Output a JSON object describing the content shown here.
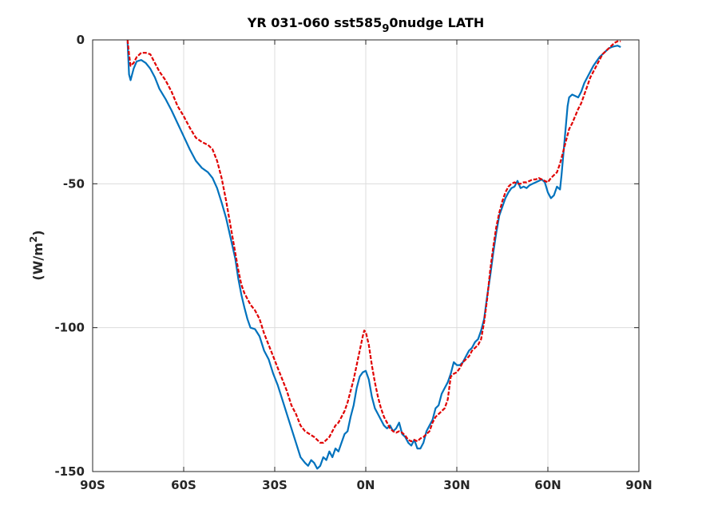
{
  "chart_data": {
    "type": "line",
    "title": {
      "main": "YR 031-060 sst585",
      "subscript": "9",
      "rest": "0nudge LATH"
    },
    "ylabel": {
      "main": "(W/m",
      "superscript": "2",
      "rest": ")"
    },
    "xlabel": "",
    "xlim": [
      -90,
      90
    ],
    "ylim": [
      -150,
      0
    ],
    "xticks": [
      {
        "value": -90,
        "label": "90S"
      },
      {
        "value": -60,
        "label": "60S"
      },
      {
        "value": -30,
        "label": "30S"
      },
      {
        "value": 0,
        "label": "0N"
      },
      {
        "value": 30,
        "label": "30N"
      },
      {
        "value": 60,
        "label": "60N"
      },
      {
        "value": 90,
        "label": "90N"
      }
    ],
    "yticks": [
      {
        "value": 0,
        "label": "0"
      },
      {
        "value": -50,
        "label": "-50"
      },
      {
        "value": -100,
        "label": "-100"
      },
      {
        "value": -150,
        "label": "-150"
      }
    ],
    "grid": true,
    "series": [
      {
        "color": "#0072BD",
        "style": "solid",
        "points": [
          [
            -78.5,
            -0.5
          ],
          [
            -78,
            -12
          ],
          [
            -77.5,
            -14
          ],
          [
            -76.5,
            -10
          ],
          [
            -75.5,
            -7.5
          ],
          [
            -74,
            -7
          ],
          [
            -72.5,
            -8
          ],
          [
            -71,
            -10
          ],
          [
            -69.5,
            -13
          ],
          [
            -68,
            -17
          ],
          [
            -66,
            -20.5
          ],
          [
            -64,
            -24.5
          ],
          [
            -62,
            -29
          ],
          [
            -60,
            -33.5
          ],
          [
            -58,
            -38
          ],
          [
            -56,
            -42
          ],
          [
            -54,
            -44.5
          ],
          [
            -52,
            -46
          ],
          [
            -50.5,
            -48
          ],
          [
            -49,
            -51.5
          ],
          [
            -47.5,
            -56.5
          ],
          [
            -46,
            -62
          ],
          [
            -44.5,
            -69
          ],
          [
            -43,
            -76
          ],
          [
            -42,
            -83
          ],
          [
            -41,
            -88.5
          ],
          [
            -40,
            -93
          ],
          [
            -39,
            -97
          ],
          [
            -38,
            -100
          ],
          [
            -36.5,
            -100.5
          ],
          [
            -35,
            -103
          ],
          [
            -33.5,
            -108
          ],
          [
            -32,
            -111
          ],
          [
            -30.5,
            -116
          ],
          [
            -29,
            -120
          ],
          [
            -27.5,
            -125
          ],
          [
            -26,
            -130
          ],
          [
            -24.5,
            -135
          ],
          [
            -23,
            -140
          ],
          [
            -21.5,
            -145
          ],
          [
            -20,
            -147
          ],
          [
            -19,
            -148
          ],
          [
            -18,
            -146
          ],
          [
            -17,
            -147
          ],
          [
            -16,
            -149
          ],
          [
            -15,
            -148
          ],
          [
            -14,
            -145
          ],
          [
            -13,
            -146
          ],
          [
            -12,
            -143
          ],
          [
            -11,
            -145
          ],
          [
            -10,
            -142
          ],
          [
            -9,
            -143
          ],
          [
            -8,
            -140
          ],
          [
            -7,
            -137
          ],
          [
            -6,
            -136
          ],
          [
            -5,
            -131
          ],
          [
            -4,
            -127
          ],
          [
            -3,
            -121
          ],
          [
            -2,
            -117
          ],
          [
            -1,
            -115.5
          ],
          [
            0,
            -115
          ],
          [
            1,
            -118
          ],
          [
            2,
            -124
          ],
          [
            3,
            -128
          ],
          [
            4,
            -130
          ],
          [
            5,
            -132
          ],
          [
            6,
            -134
          ],
          [
            7,
            -135
          ],
          [
            8,
            -134
          ],
          [
            9,
            -136
          ],
          [
            10,
            -135
          ],
          [
            11,
            -133
          ],
          [
            12,
            -137
          ],
          [
            13,
            -138
          ],
          [
            14,
            -140
          ],
          [
            15,
            -141
          ],
          [
            16,
            -139
          ],
          [
            17,
            -142
          ],
          [
            18,
            -142
          ],
          [
            19,
            -140
          ],
          [
            20,
            -136
          ],
          [
            21,
            -134
          ],
          [
            22,
            -132
          ],
          [
            23,
            -128
          ],
          [
            24,
            -127
          ],
          [
            25,
            -123
          ],
          [
            26,
            -121
          ],
          [
            27,
            -119
          ],
          [
            28,
            -116
          ],
          [
            29,
            -112
          ],
          [
            30,
            -113
          ],
          [
            31,
            -113
          ],
          [
            32,
            -112
          ],
          [
            33,
            -110
          ],
          [
            34,
            -108
          ],
          [
            35,
            -107
          ],
          [
            36,
            -105
          ],
          [
            37,
            -104
          ],
          [
            38,
            -101
          ],
          [
            39,
            -97
          ],
          [
            40,
            -89
          ],
          [
            41,
            -82
          ],
          [
            42,
            -74
          ],
          [
            43,
            -67
          ],
          [
            44,
            -61
          ],
          [
            45,
            -58
          ],
          [
            46,
            -55
          ],
          [
            47,
            -53
          ],
          [
            48,
            -51.5
          ],
          [
            49,
            -51
          ],
          [
            50,
            -49
          ],
          [
            51,
            -51.5
          ],
          [
            52,
            -51
          ],
          [
            53,
            -51.5
          ],
          [
            54,
            -50.5
          ],
          [
            55,
            -50
          ],
          [
            56,
            -49.5
          ],
          [
            57,
            -49
          ],
          [
            58,
            -48.5
          ],
          [
            59,
            -49.5
          ],
          [
            60,
            -53
          ],
          [
            61,
            -55
          ],
          [
            62,
            -54
          ],
          [
            63,
            -51
          ],
          [
            64,
            -52
          ],
          [
            64.5,
            -47
          ],
          [
            65,
            -41
          ],
          [
            65.5,
            -35
          ],
          [
            66,
            -29
          ],
          [
            66.5,
            -23
          ],
          [
            67,
            -20
          ],
          [
            68,
            -19
          ],
          [
            69,
            -19.5
          ],
          [
            70,
            -20
          ],
          [
            71,
            -18
          ],
          [
            72,
            -15
          ],
          [
            73,
            -13
          ],
          [
            74,
            -11
          ],
          [
            75,
            -9
          ],
          [
            76,
            -7.5
          ],
          [
            77,
            -6
          ],
          [
            78,
            -5
          ],
          [
            79,
            -4
          ],
          [
            80,
            -3
          ],
          [
            81,
            -2.5
          ],
          [
            82,
            -2.2
          ],
          [
            83,
            -2
          ],
          [
            84,
            -2.5
          ]
        ]
      },
      {
        "color": "#E00000",
        "style": "dashed",
        "points": [
          [
            -78.5,
            0
          ],
          [
            -78,
            -5
          ],
          [
            -77.5,
            -9
          ],
          [
            -76.5,
            -8
          ],
          [
            -75.5,
            -6
          ],
          [
            -74,
            -4.5
          ],
          [
            -72.5,
            -4.5
          ],
          [
            -71,
            -5
          ],
          [
            -69.5,
            -8
          ],
          [
            -68,
            -11
          ],
          [
            -66,
            -14
          ],
          [
            -64,
            -18
          ],
          [
            -62,
            -23
          ],
          [
            -60,
            -26.5
          ],
          [
            -58,
            -30.5
          ],
          [
            -56,
            -34
          ],
          [
            -54,
            -35.5
          ],
          [
            -52,
            -36.5
          ],
          [
            -50.5,
            -38
          ],
          [
            -49,
            -42
          ],
          [
            -47.5,
            -48
          ],
          [
            -46,
            -56
          ],
          [
            -44.5,
            -65
          ],
          [
            -43,
            -74
          ],
          [
            -42,
            -80
          ],
          [
            -41,
            -85
          ],
          [
            -40,
            -88
          ],
          [
            -39,
            -90
          ],
          [
            -38,
            -92
          ],
          [
            -36.5,
            -94
          ],
          [
            -35,
            -97
          ],
          [
            -33.5,
            -102
          ],
          [
            -32,
            -106
          ],
          [
            -30.5,
            -110
          ],
          [
            -29,
            -114
          ],
          [
            -27.5,
            -118
          ],
          [
            -26,
            -122
          ],
          [
            -24.5,
            -127
          ],
          [
            -23,
            -130
          ],
          [
            -21.5,
            -134
          ],
          [
            -20,
            -136
          ],
          [
            -18.5,
            -137
          ],
          [
            -17,
            -138
          ],
          [
            -16,
            -139
          ],
          [
            -15,
            -140
          ],
          [
            -14,
            -140
          ],
          [
            -13,
            -139
          ],
          [
            -12,
            -138
          ],
          [
            -11,
            -136
          ],
          [
            -10,
            -134
          ],
          [
            -9,
            -133
          ],
          [
            -8,
            -131
          ],
          [
            -7,
            -129
          ],
          [
            -6,
            -126
          ],
          [
            -5,
            -122
          ],
          [
            -4,
            -118
          ],
          [
            -3,
            -113
          ],
          [
            -2,
            -108
          ],
          [
            -1,
            -103
          ],
          [
            -0.5,
            -101
          ],
          [
            0,
            -101.5
          ],
          [
            1,
            -106
          ],
          [
            2,
            -113
          ],
          [
            3,
            -119
          ],
          [
            4,
            -124
          ],
          [
            5,
            -128
          ],
          [
            6,
            -131
          ],
          [
            7,
            -133
          ],
          [
            8,
            -135
          ],
          [
            9,
            -136
          ],
          [
            10,
            -136.5
          ],
          [
            11,
            -136
          ],
          [
            12,
            -136.5
          ],
          [
            13,
            -137.5
          ],
          [
            14,
            -139
          ],
          [
            15,
            -139.5
          ],
          [
            16,
            -139
          ],
          [
            17,
            -139.5
          ],
          [
            18,
            -138.5
          ],
          [
            19,
            -138
          ],
          [
            20,
            -137
          ],
          [
            21,
            -136
          ],
          [
            22,
            -133
          ],
          [
            23,
            -131
          ],
          [
            24,
            -130
          ],
          [
            25,
            -129
          ],
          [
            26,
            -128
          ],
          [
            27,
            -125
          ],
          [
            28,
            -117
          ],
          [
            29,
            -116
          ],
          [
            30,
            -115.5
          ],
          [
            31,
            -114
          ],
          [
            32,
            -112
          ],
          [
            33,
            -111
          ],
          [
            34,
            -110
          ],
          [
            35,
            -108
          ],
          [
            36,
            -107
          ],
          [
            37,
            -106
          ],
          [
            38,
            -104
          ],
          [
            39,
            -98
          ],
          [
            40,
            -90
          ],
          [
            41,
            -80
          ],
          [
            42,
            -72
          ],
          [
            43,
            -65
          ],
          [
            44,
            -60
          ],
          [
            45,
            -56
          ],
          [
            46,
            -53
          ],
          [
            47,
            -51
          ],
          [
            48,
            -50
          ],
          [
            49,
            -49.5
          ],
          [
            50,
            -50
          ],
          [
            51,
            -50
          ],
          [
            52,
            -49.5
          ],
          [
            53,
            -49.5
          ],
          [
            54,
            -49
          ],
          [
            55,
            -48.5
          ],
          [
            56,
            -48.5
          ],
          [
            57,
            -48
          ],
          [
            58,
            -48.5
          ],
          [
            59,
            -49
          ],
          [
            60,
            -49.5
          ],
          [
            61,
            -48
          ],
          [
            62,
            -47
          ],
          [
            63,
            -46
          ],
          [
            64,
            -43
          ],
          [
            65,
            -39
          ],
          [
            66,
            -35
          ],
          [
            67,
            -31
          ],
          [
            68,
            -29
          ],
          [
            69,
            -26.5
          ],
          [
            70,
            -24
          ],
          [
            71,
            -22
          ],
          [
            72,
            -19
          ],
          [
            73,
            -16
          ],
          [
            74,
            -13
          ],
          [
            75,
            -11
          ],
          [
            76,
            -9
          ],
          [
            77,
            -7
          ],
          [
            78,
            -5
          ],
          [
            79,
            -4
          ],
          [
            80,
            -3
          ],
          [
            81,
            -2
          ],
          [
            82,
            -1
          ],
          [
            83,
            -0.5
          ],
          [
            84,
            -0.5
          ]
        ]
      }
    ]
  }
}
